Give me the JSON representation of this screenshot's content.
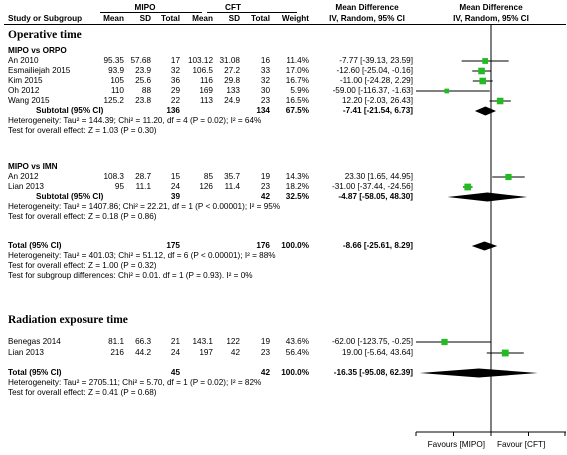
{
  "chart_data": {
    "type": "forest",
    "columns": {
      "study": "Study or Subgroup",
      "group1": "MIPO",
      "group2": "CFT",
      "mean": "Mean",
      "sd": "SD",
      "total": "Total",
      "weight": "Weight",
      "md_text": "Mean Difference",
      "md_text_sub": "IV, Random, 95% CI",
      "md_plot": "Mean Difference",
      "md_plot_sub": "IV, Random, 95% CI"
    },
    "x_axis": {
      "ticks": [
        -100,
        -50,
        0,
        50,
        100
      ],
      "tick_labels": [
        "",
        "",
        "",
        "",
        ""
      ],
      "favours_left": "Favours [MIPO]",
      "favours_right": "Favour [CFT]"
    },
    "sections": [
      {
        "title": "Operative time",
        "subgroups": [
          {
            "title": "MIPO vs ORPO",
            "studies": [
              {
                "name": "An 2010",
                "m1": "95.35",
                "sd1": "57.68",
                "n1": "17",
                "m2": "103.12",
                "sd2": "31.08",
                "n2": "16",
                "weight": "11.4%",
                "ci": "-7.77 [-39.13, 23.59]",
                "md": -7.77,
                "lo": -39.13,
                "hi": 23.59,
                "w": 11.4
              },
              {
                "name": "Esmailiejah 2015",
                "m1": "93.9",
                "sd1": "23.9",
                "n1": "32",
                "m2": "106.5",
                "sd2": "27.2",
                "n2": "33",
                "weight": "17.0%",
                "ci": "-12.60 [-25.04, -0.16]",
                "md": -12.6,
                "lo": -25.04,
                "hi": -0.16,
                "w": 17.0
              },
              {
                "name": "Kim 2015",
                "m1": "105",
                "sd1": "25.6",
                "n1": "36",
                "m2": "116",
                "sd2": "29.8",
                "n2": "32",
                "weight": "16.7%",
                "ci": "-11.00 [-24.28, 2.29]",
                "md": -11.0,
                "lo": -24.28,
                "hi": 2.29,
                "w": 16.7
              },
              {
                "name": "Oh 2012",
                "m1": "110",
                "sd1": "88",
                "n1": "29",
                "m2": "169",
                "sd2": "133",
                "n2": "30",
                "weight": "5.9%",
                "ci": "-59.00 [-116.37, -1.63]",
                "md": -59.0,
                "lo": -116.37,
                "hi": -1.63,
                "w": 5.9
              },
              {
                "name": "Wang 2015",
                "m1": "125.2",
                "sd1": "23.8",
                "n1": "22",
                "m2": "113",
                "sd2": "24.9",
                "n2": "23",
                "weight": "16.5%",
                "ci": "12.20 [-2.03, 26.43]",
                "md": 12.2,
                "lo": -2.03,
                "hi": 26.43,
                "w": 16.5
              }
            ],
            "subtotal": {
              "label": "Subtotal (95% CI)",
              "n1": "136",
              "n2": "134",
              "weight": "67.5%",
              "ci": "-7.41 [-21.54, 6.73]",
              "md": -7.41,
              "lo": -21.54,
              "hi": 6.73
            },
            "heterogeneity": "Heterogeneity: Tau² = 144.39; Chi² = 11.20, df = 4 (P = 0.02); I² = 64%",
            "overall": "Test for overall effect: Z = 1.03 (P = 0.30)"
          },
          {
            "title": "MIPO vs IMN",
            "studies": [
              {
                "name": "An 2012",
                "m1": "108.3",
                "sd1": "28.7",
                "n1": "15",
                "m2": "85",
                "sd2": "35.7",
                "n2": "19",
                "weight": "14.3%",
                "ci": "23.30 [1.65, 44.95]",
                "md": 23.3,
                "lo": 1.65,
                "hi": 44.95,
                "w": 14.3
              },
              {
                "name": "Lian 2013",
                "m1": "95",
                "sd1": "11.1",
                "n1": "24",
                "m2": "126",
                "sd2": "11.4",
                "n2": "23",
                "weight": "18.2%",
                "ci": "-31.00 [-37.44, -24.56]",
                "md": -31.0,
                "lo": -37.44,
                "hi": -24.56,
                "w": 18.2
              }
            ],
            "subtotal": {
              "label": "Subtotal (95% CI)",
              "n1": "39",
              "n2": "42",
              "weight": "32.5%",
              "ci": "-4.87 [-58.05, 48.30]",
              "md": -4.87,
              "lo": -58.05,
              "hi": 48.3
            },
            "heterogeneity": "Heterogeneity: Tau² = 1407.86; Chi² = 22.21, df = 1 (P < 0.00001); I² = 95%",
            "overall": "Test for overall effect: Z = 0.18 (P = 0.86)"
          }
        ],
        "total": {
          "label": "Total (95% CI)",
          "n1": "175",
          "n2": "176",
          "weight": "100.0%",
          "ci": "-8.66 [-25.61, 8.29]",
          "md": -8.66,
          "lo": -25.61,
          "hi": 8.29
        },
        "total_heterogeneity": "Heterogeneity: Tau² = 401.03; Chi² = 51.12, df = 6 (P < 0.00001); I² = 88%",
        "total_overall": "Test for overall effect: Z = 1.00 (P = 0.32)",
        "subgroup_diff": "Test for subgroup differences: Chi² = 0.01. df = 1 (P = 0.93). I² = 0%"
      },
      {
        "title": "Radiation exposure time",
        "studies": [
          {
            "name": "Benegas 2014",
            "m1": "81.1",
            "sd1": "66.3",
            "n1": "21",
            "m2": "143.1",
            "sd2": "122",
            "n2": "19",
            "weight": "43.6%",
            "ci": "-62.00 [-123.75, -0.25]",
            "md": -62.0,
            "lo": -123.75,
            "hi": -0.25,
            "w": 43.6
          },
          {
            "name": "Lian 2013",
            "m1": "216",
            "sd1": "44.2",
            "n1": "24",
            "m2": "197",
            "sd2": "42",
            "n2": "23",
            "weight": "56.4%",
            "ci": "19.00 [-5.64, 43.64]",
            "md": 19.0,
            "lo": -5.64,
            "hi": 43.64,
            "w": 56.4
          }
        ],
        "total": {
          "label": "Total (95% CI)",
          "n1": "45",
          "n2": "42",
          "weight": "100.0%",
          "ci": "-16.35 [-95.08, 62.39]",
          "md": -16.35,
          "lo": -95.08,
          "hi": 62.39
        },
        "total_heterogeneity": "Heterogeneity: Tau² = 2705.11; Chi² = 5.70, df = 1 (P = 0.02); I² = 82%",
        "total_overall": "Test for overall effect: Z = 0.41 (P = 0.68)"
      }
    ],
    "colors": {
      "square": "#22bb22",
      "diamond": "#000000",
      "line": "#000000"
    }
  }
}
